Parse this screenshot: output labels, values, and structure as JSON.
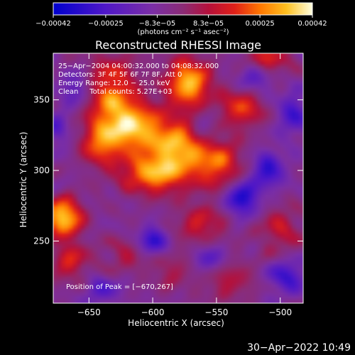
{
  "chart_data": {
    "type": "heatmap",
    "title": "Reconstructed RHESSI Image",
    "xlabel": "Heliocentric X (arcsec)",
    "ylabel": "Heliocentric Y (arcsec)",
    "xlim": [
      -678,
      -482
    ],
    "ylim": [
      206,
      383
    ],
    "x_ticks": [
      -650,
      -600,
      -550,
      -500
    ],
    "x_tick_labels": [
      "−650",
      "−600",
      "−550",
      "−500"
    ],
    "y_ticks": [
      250,
      300,
      350
    ],
    "y_tick_labels": [
      "250",
      "300",
      "350"
    ],
    "colorbar": {
      "min": -0.00042,
      "max": 0.00042,
      "ticks": [
        -0.00042,
        -0.00025,
        -8.3e-05,
        8.3e-05,
        0.00025,
        0.00042
      ],
      "tick_labels": [
        "−0.00042",
        "−0.00025",
        "−8.3e−05",
        "8.3e−05",
        "0.00025",
        "0.00042"
      ],
      "label": "(photons cm⁻² s⁻¹ asec⁻²)"
    },
    "annotations": [
      "25−Apr−2004 04:00:32.000 to 04:08:32.000",
      "Detectors: 3F 4F 5F 6F 7F 8F, Att 0",
      "Energy Range: 12.0 − 25.0 keV",
      "Clean     Total counts: 5.27E+03"
    ],
    "peak_label": "Position of Peak = [−670,267]",
    "peak": [
      -670,
      267
    ],
    "emission_sources": [
      {
        "x": -670,
        "y": 267,
        "sx": 10,
        "sy": 9,
        "v": 0.00044
      },
      {
        "x": -632,
        "y": 350,
        "sx": 14,
        "sy": 22,
        "v": 0.0003
      },
      {
        "x": -642,
        "y": 318,
        "sx": 10,
        "sy": 10,
        "v": 0.00022
      },
      {
        "x": -612,
        "y": 330,
        "sx": 16,
        "sy": 12,
        "v": 0.00034
      },
      {
        "x": -598,
        "y": 298,
        "sx": 18,
        "sy": 10,
        "v": 0.00036
      },
      {
        "x": -580,
        "y": 318,
        "sx": 14,
        "sy": 12,
        "v": 0.00033
      },
      {
        "x": -572,
        "y": 362,
        "sx": 12,
        "sy": 12,
        "v": 0.0004
      },
      {
        "x": -550,
        "y": 305,
        "sx": 14,
        "sy": 12,
        "v": 0.00028
      },
      {
        "x": -530,
        "y": 345,
        "sx": 12,
        "sy": 10,
        "v": 0.00025
      },
      {
        "x": -562,
        "y": 262,
        "sx": 14,
        "sy": 10,
        "v": 0.00018
      },
      {
        "x": -500,
        "y": 258,
        "sx": 12,
        "sy": 12,
        "v": 0.00016
      },
      {
        "x": -510,
        "y": 378,
        "sx": 12,
        "sy": 8,
        "v": 0.00022
      },
      {
        "x": -665,
        "y": 236,
        "sx": 10,
        "sy": 10,
        "v": 0.0002
      },
      {
        "x": -620,
        "y": 240,
        "sx": 14,
        "sy": 9,
        "v": 0.00012
      },
      {
        "x": -540,
        "y": 222,
        "sx": 14,
        "sy": 10,
        "v": 0.00014
      },
      {
        "x": -585,
        "y": 228,
        "sx": 10,
        "sy": 10,
        "v": 0.00011
      }
    ],
    "negative_sources": [
      {
        "x": -600,
        "y": 250,
        "sx": 8,
        "sy": 7,
        "v": -0.00028
      },
      {
        "x": -530,
        "y": 280,
        "sx": 9,
        "sy": 8,
        "v": -0.00032
      },
      {
        "x": -510,
        "y": 300,
        "sx": 9,
        "sy": 9,
        "v": -0.00026
      },
      {
        "x": -495,
        "y": 225,
        "sx": 10,
        "sy": 8,
        "v": -0.00024
      },
      {
        "x": -520,
        "y": 365,
        "sx": 10,
        "sy": 8,
        "v": -0.0002
      },
      {
        "x": -660,
        "y": 358,
        "sx": 8,
        "sy": 8,
        "v": -0.00018
      },
      {
        "x": -640,
        "y": 215,
        "sx": 10,
        "sy": 7,
        "v": -0.00016
      },
      {
        "x": -555,
        "y": 238,
        "sx": 8,
        "sy": 7,
        "v": -0.00018
      },
      {
        "x": -490,
        "y": 340,
        "sx": 8,
        "sy": 10,
        "v": -0.00022
      },
      {
        "x": -675,
        "y": 330,
        "sx": 7,
        "sy": 9,
        "v": -0.00015
      },
      {
        "x": -560,
        "y": 330,
        "sx": 7,
        "sy": 7,
        "v": -0.00012
      }
    ],
    "colormap": {
      "name": "hot-with-blue-negative",
      "stops": [
        {
          "v": 0.0,
          "color": "#0000cd"
        },
        {
          "v": 0.2,
          "color": "#4f17c8"
        },
        {
          "v": 0.38,
          "color": "#7a2ea6"
        },
        {
          "v": 0.5,
          "color": "#8b2c76"
        },
        {
          "v": 0.6,
          "color": "#b5103a"
        },
        {
          "v": 0.7,
          "color": "#e02018"
        },
        {
          "v": 0.8,
          "color": "#ff7800"
        },
        {
          "v": 0.9,
          "color": "#ffc020"
        },
        {
          "v": 1.0,
          "color": "#ffffe0"
        }
      ]
    }
  },
  "footer": {
    "date": "30−Apr−2022 10:49"
  }
}
